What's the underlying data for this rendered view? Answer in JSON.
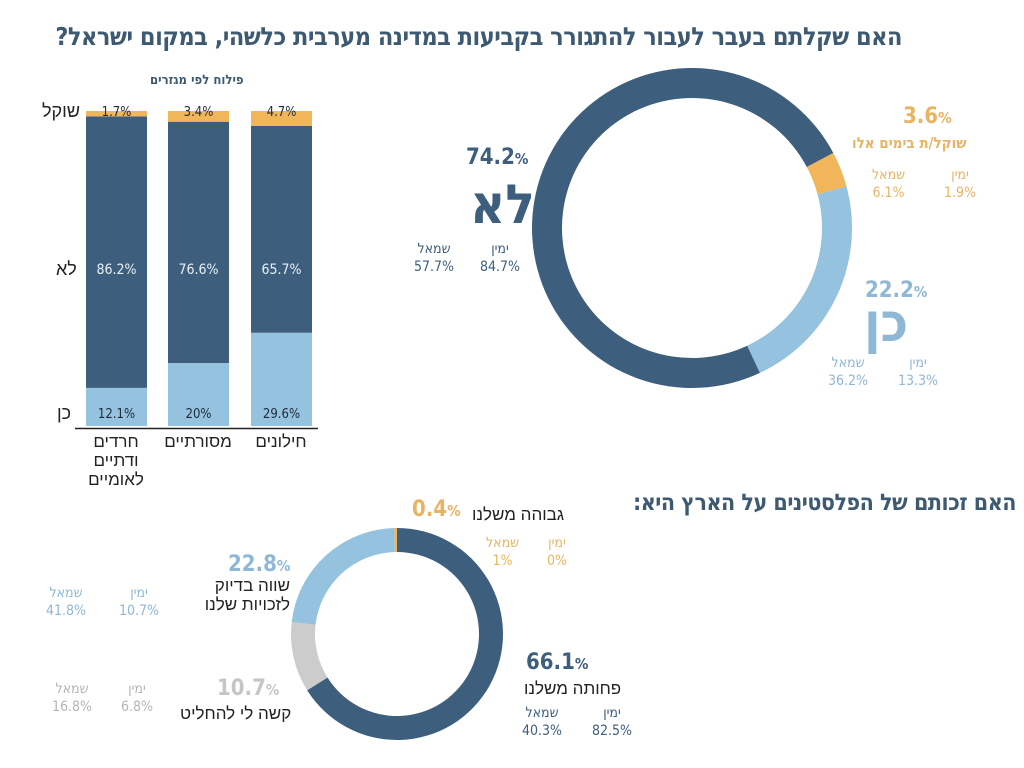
{
  "colors": {
    "dark": "#3d5f7d",
    "light": "#95c2df",
    "orange": "#f0b659",
    "grey": "#cccccc",
    "title": "#3d5a72",
    "light_text": "#8fb8d6",
    "orange_text": "#e8b462",
    "grey_text": "#b5b5b5"
  },
  "title": "האם שקלתם בעבר לעבור להתגורר בקביעות במדינה מערבית כלשהי, במקום ישראל?",
  "bottom_title": "האם זכותם של הפלסטינים על הארץ היא:",
  "chart_data": [
    {
      "type": "bar",
      "stacked": true,
      "title": "פילוח לפי מגזרים",
      "categories": [
        "חרדים ודתיים לאומיים",
        "מסורתיים",
        "חילונים"
      ],
      "category_lines": [
        [
          "חרדים",
          "ודתיים",
          "לאומיים"
        ],
        [
          "מסורתיים"
        ],
        [
          "חילונים"
        ]
      ],
      "row_labels": {
        "considering": "שוקל",
        "no": "לא",
        "yes": "כן"
      },
      "series": [
        {
          "name": "כן",
          "key": "yes",
          "values": [
            12.1,
            20,
            29.6
          ],
          "labels": [
            "12.1%",
            "20%",
            "29.6%"
          ]
        },
        {
          "name": "לא",
          "key": "no",
          "values": [
            86.2,
            76.6,
            65.7
          ],
          "labels": [
            "86.2%",
            "76.6%",
            "65.7%"
          ]
        },
        {
          "name": "שוקל",
          "key": "considering",
          "values": [
            1.7,
            3.4,
            4.7
          ],
          "labels": [
            "1.7%",
            "3.4%",
            "4.7%"
          ]
        }
      ],
      "ylim": [
        0,
        100
      ]
    },
    {
      "type": "pie",
      "donut": true,
      "title": "האם שקלתם בעבר לעבור להתגורר בקביעות במדינה מערבית כלשהי, במקום ישראל?",
      "slices": [
        {
          "key": "considering",
          "label": "שוקל/ת בימים אלו",
          "value": 3.6,
          "pct_label": "3.6",
          "right_label": "ימין",
          "right_value": "1.9%",
          "left_label": "שמאל",
          "left_value": "6.1%"
        },
        {
          "key": "yes",
          "label": "כן",
          "value": 22.2,
          "pct_label": "22.2",
          "right_label": "ימין",
          "right_value": "13.3%",
          "left_label": "שמאל",
          "left_value": "36.2%"
        },
        {
          "key": "no",
          "label": "לא",
          "value": 74.2,
          "pct_label": "74.2",
          "right_label": "ימין",
          "right_value": "84.7%",
          "left_label": "שמאל",
          "left_value": "57.7%"
        }
      ]
    },
    {
      "type": "pie",
      "donut": true,
      "title": "האם זכותם של הפלסטינים על הארץ היא:",
      "slices": [
        {
          "key": "less",
          "label": "פחותה משלנו",
          "value": 66.1,
          "pct_label": "66.1",
          "right_label": "ימין",
          "right_value": "82.5%",
          "left_label": "שמאל",
          "left_value": "40.3%"
        },
        {
          "key": "hard",
          "label": "קשה לי להחליט",
          "value": 10.7,
          "pct_label": "10.7",
          "right_label": "ימין",
          "right_value": "6.8%",
          "left_label": "שמאל",
          "left_value": "16.8%"
        },
        {
          "key": "equal",
          "label": "שווה בדיוק לזכויות שלנו",
          "label_lines": [
            "שווה בדיוק",
            "לזכויות שלנו"
          ],
          "value": 22.8,
          "pct_label": "22.8",
          "right_label": "ימין",
          "right_value": "10.7%",
          "left_label": "שמאל",
          "left_value": "41.8%"
        },
        {
          "key": "higher",
          "label": "גבוהה משלנו",
          "value": 0.4,
          "pct_label": "0.4",
          "right_label": "ימין",
          "right_value": "0%",
          "left_label": "שמאל",
          "left_value": "1%"
        }
      ]
    }
  ],
  "pct_sign": "%"
}
